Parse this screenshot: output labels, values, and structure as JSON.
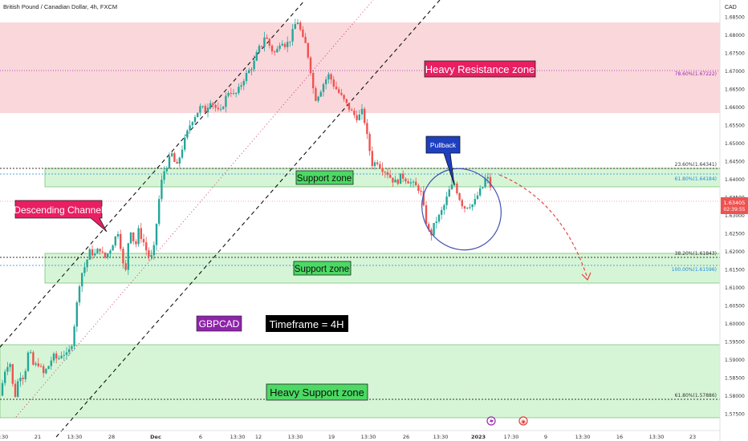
{
  "header": {
    "symbol_title": "British Pound / Canadian Dollar, 4h, FXCM",
    "currency": "CAD"
  },
  "price_axis": {
    "ticks": [
      "1.68500",
      "1.68000",
      "1.67500",
      "1.67000",
      "1.66500",
      "1.66000",
      "1.65500",
      "1.65000",
      "1.64500",
      "1.64000",
      "1.63500",
      "1.63000",
      "1.62500",
      "1.62000",
      "1.61500",
      "1.61000",
      "1.60500",
      "1.60000",
      "1.59500",
      "1.59000",
      "1.58500",
      "1.58000",
      "1.57500"
    ],
    "current_price": "1.63405",
    "countdown": "02:39:55"
  },
  "time_axis": {
    "ticks": [
      ":30",
      "21",
      "13:30",
      "28",
      "Dec",
      "6",
      "13:30",
      "12",
      "13:30",
      "19",
      "13:30",
      "26",
      "13:30",
      "2023",
      "17:30",
      "9",
      "13:30",
      "16",
      "13:30",
      "23"
    ]
  },
  "fib_labels": {
    "f786": "78.60%(1.67222)",
    "f236": "23.60%(1.64341)",
    "f618_top": "61.80%(1.64184)",
    "f382": "38.20%(1.61843)",
    "f100": "100.00%(1.61596)",
    "f618_bottom": "61.80%(1.57886)"
  },
  "annotations": {
    "resistance_label": "Heavy Resistance zone",
    "support_upper": "Support zone",
    "support_lower": "Support zone",
    "heavy_support": "Heavy Support zone",
    "channel_label": "Descending Channel",
    "pullback_label": "Pullback",
    "symbol_tag": "GBPCAD",
    "timeframe_tag": "Timeframe = 4H"
  },
  "colors": {
    "bull": "#26a69a",
    "bear": "#ef5350",
    "resistance_fill": "#f8c9cf",
    "support_fill": "#d6f5d6",
    "label_red": "#e91e63",
    "label_green": "#4cd964",
    "pullback_blue": "#1e3fbf",
    "symbol_purple": "#8e24aa"
  },
  "chart_data": {
    "type": "candlestick",
    "title": "British Pound / Canadian Dollar, 4h, FXCM",
    "ylim": [
      1.5735,
      1.6885
    ],
    "close_path": [
      [
        0,
        1.58
      ],
      [
        6,
        1.587
      ],
      [
        12,
        1.59
      ],
      [
        18,
        1.579
      ],
      [
        24,
        1.586
      ],
      [
        30,
        1.585
      ],
      [
        36,
        1.593
      ],
      [
        42,
        1.588
      ],
      [
        48,
        1.589
      ],
      [
        54,
        1.586
      ],
      [
        60,
        1.588
      ],
      [
        66,
        1.591
      ],
      [
        72,
        1.59
      ],
      [
        78,
        1.592
      ],
      [
        84,
        1.591
      ],
      [
        90,
        1.595
      ],
      [
        95,
        1.604
      ],
      [
        100,
        1.613
      ],
      [
        106,
        1.616
      ],
      [
        112,
        1.62
      ],
      [
        118,
        1.619
      ],
      [
        124,
        1.621
      ],
      [
        130,
        1.618
      ],
      [
        136,
        1.62
      ],
      [
        142,
        1.623
      ],
      [
        148,
        1.626
      ],
      [
        152,
        1.618
      ],
      [
        156,
        1.613
      ],
      [
        160,
        1.623
      ],
      [
        164,
        1.627
      ],
      [
        168,
        1.62
      ],
      [
        172,
        1.626
      ],
      [
        176,
        1.624
      ],
      [
        180,
        1.622
      ],
      [
        184,
        1.619
      ],
      [
        188,
        1.618
      ],
      [
        192,
        1.621
      ],
      [
        196,
        1.63
      ],
      [
        200,
        1.638
      ],
      [
        204,
        1.642
      ],
      [
        208,
        1.644
      ],
      [
        214,
        1.647
      ],
      [
        220,
        1.643
      ],
      [
        226,
        1.648
      ],
      [
        232,
        1.652
      ],
      [
        238,
        1.656
      ],
      [
        244,
        1.658
      ],
      [
        250,
        1.66
      ],
      [
        256,
        1.659
      ],
      [
        262,
        1.662
      ],
      [
        268,
        1.66
      ],
      [
        274,
        1.658
      ],
      [
        280,
        1.662
      ],
      [
        286,
        1.665
      ],
      [
        292,
        1.663
      ],
      [
        298,
        1.665
      ],
      [
        304,
        1.668
      ],
      [
        310,
        1.67
      ],
      [
        316,
        1.672
      ],
      [
        322,
        1.676
      ],
      [
        326,
        1.677
      ],
      [
        330,
        1.68
      ],
      [
        334,
        1.678
      ],
      [
        338,
        1.676
      ],
      [
        342,
        1.675
      ],
      [
        346,
        1.676
      ],
      [
        350,
        1.679
      ],
      [
        356,
        1.677
      ],
      [
        362,
        1.679
      ],
      [
        368,
        1.683
      ],
      [
        372,
        1.684
      ],
      [
        376,
        1.679
      ],
      [
        380,
        1.678
      ],
      [
        384,
        1.674
      ],
      [
        388,
        1.669
      ],
      [
        392,
        1.662
      ],
      [
        398,
        1.664
      ],
      [
        404,
        1.667
      ],
      [
        410,
        1.669
      ],
      [
        416,
        1.666
      ],
      [
        422,
        1.664
      ],
      [
        428,
        1.662
      ],
      [
        434,
        1.66
      ],
      [
        440,
        1.658
      ],
      [
        446,
        1.657
      ],
      [
        452,
        1.659
      ],
      [
        458,
        1.651
      ],
      [
        464,
        1.644
      ],
      [
        470,
        1.645
      ],
      [
        476,
        1.643
      ],
      [
        482,
        1.642
      ],
      [
        488,
        1.64
      ],
      [
        494,
        1.639
      ],
      [
        500,
        1.641
      ],
      [
        506,
        1.64
      ],
      [
        512,
        1.639
      ],
      [
        518,
        1.638
      ],
      [
        524,
        1.637
      ],
      [
        530,
        1.629
      ],
      [
        536,
        1.624
      ],
      [
        542,
        1.628
      ],
      [
        548,
        1.63
      ],
      [
        554,
        1.633
      ],
      [
        560,
        1.637
      ],
      [
        566,
        1.639
      ],
      [
        572,
        1.635
      ],
      [
        578,
        1.632
      ],
      [
        584,
        1.633
      ],
      [
        590,
        1.633
      ],
      [
        596,
        1.636
      ],
      [
        602,
        1.638
      ],
      [
        606,
        1.641
      ],
      [
        610,
        1.639
      ],
      [
        614,
        1.635
      ]
    ],
    "price_ticks": [
      1.685,
      1.68,
      1.675,
      1.67,
      1.665,
      1.66,
      1.655,
      1.65,
      1.645,
      1.64,
      1.635,
      1.63,
      1.625,
      1.62,
      1.615,
      1.61,
      1.605,
      1.6,
      1.595,
      1.59,
      1.585,
      1.58,
      1.575
    ],
    "fib_levels": [
      1.67222,
      1.64341,
      1.64184,
      1.61843,
      1.61596,
      1.57886
    ],
    "zones": [
      {
        "name": "Heavy Resistance zone",
        "from": 1.6595,
        "to": 1.6865
      },
      {
        "name": "Support zone",
        "from": 1.6392,
        "to": 1.6435
      },
      {
        "name": "Support zone",
        "from": 1.6113,
        "to": 1.6198
      },
      {
        "name": "Heavy Support zone",
        "from": 1.5755,
        "to": 1.5945
      }
    ]
  }
}
